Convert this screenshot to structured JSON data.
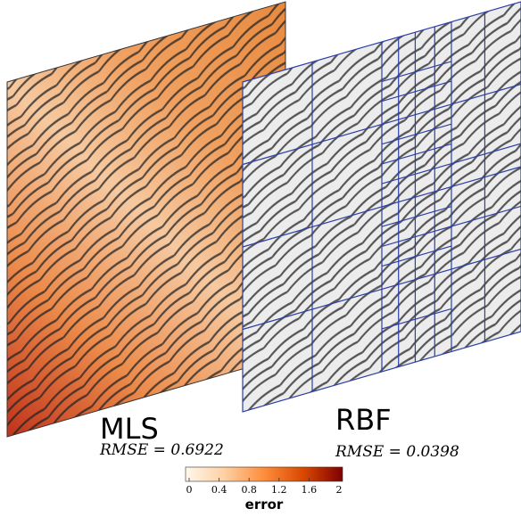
{
  "panels": [
    {
      "title": "MLS",
      "metric": "RMSE = 0.6922"
    },
    {
      "title": "RBF",
      "metric": "RMSE = 0.0398"
    }
  ],
  "colorbar": {
    "label": "error",
    "lim": [
      0,
      2
    ],
    "ticks": [
      0,
      0.4,
      0.8,
      1.2,
      1.6,
      2
    ]
  }
}
